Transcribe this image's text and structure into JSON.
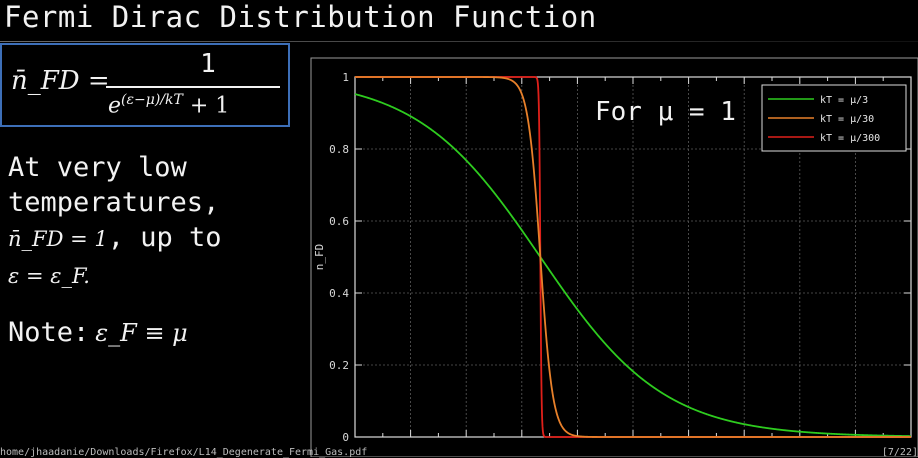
{
  "slide": {
    "title": "Fermi Dirac Distribution Function",
    "formula": {
      "lhs": "n̄_FD =",
      "numerator": "1",
      "denominator_base": "e",
      "denominator_exp": "(ε−μ)/kT",
      "denominator_tail": " + 1"
    },
    "body_lines": [
      {
        "text": "At very low"
      },
      {
        "text": "temperatures,"
      },
      {
        "math": "n̄_FD = 1",
        "text": ", up to"
      },
      {
        "math": "ε = ε_F."
      }
    ],
    "note_label": "Note:",
    "note_math": "ε_F ≡ μ",
    "footer_path": "home/jhaadanie/Downloads/Firefox/L14_Degenerate_Fermi_Gas.pdf",
    "footer_page": "[7/22]"
  },
  "chart_data": {
    "type": "line",
    "ylabel": "n_FD",
    "xlabel": "",
    "annotation": "For μ = 1",
    "mu": 1,
    "xlim": [
      0,
      3
    ],
    "ylim": [
      0,
      1
    ],
    "yticks": [
      0,
      0.2,
      0.4,
      0.6,
      0.8,
      1
    ],
    "yticklabels": [
      "0",
      "0.2",
      "0.4",
      "0.6",
      "0.8",
      "1"
    ],
    "legend_position": "top-right",
    "grid": true,
    "series": [
      {
        "name": "kT = μ/3",
        "kT": 0.3333,
        "color": "#2ecc1f"
      },
      {
        "name": "kT = μ/30",
        "kT": 0.03333,
        "color": "#e8802a"
      },
      {
        "name": "kT = μ/300",
        "kT": 0.003333,
        "color": "#e0201a"
      }
    ]
  }
}
